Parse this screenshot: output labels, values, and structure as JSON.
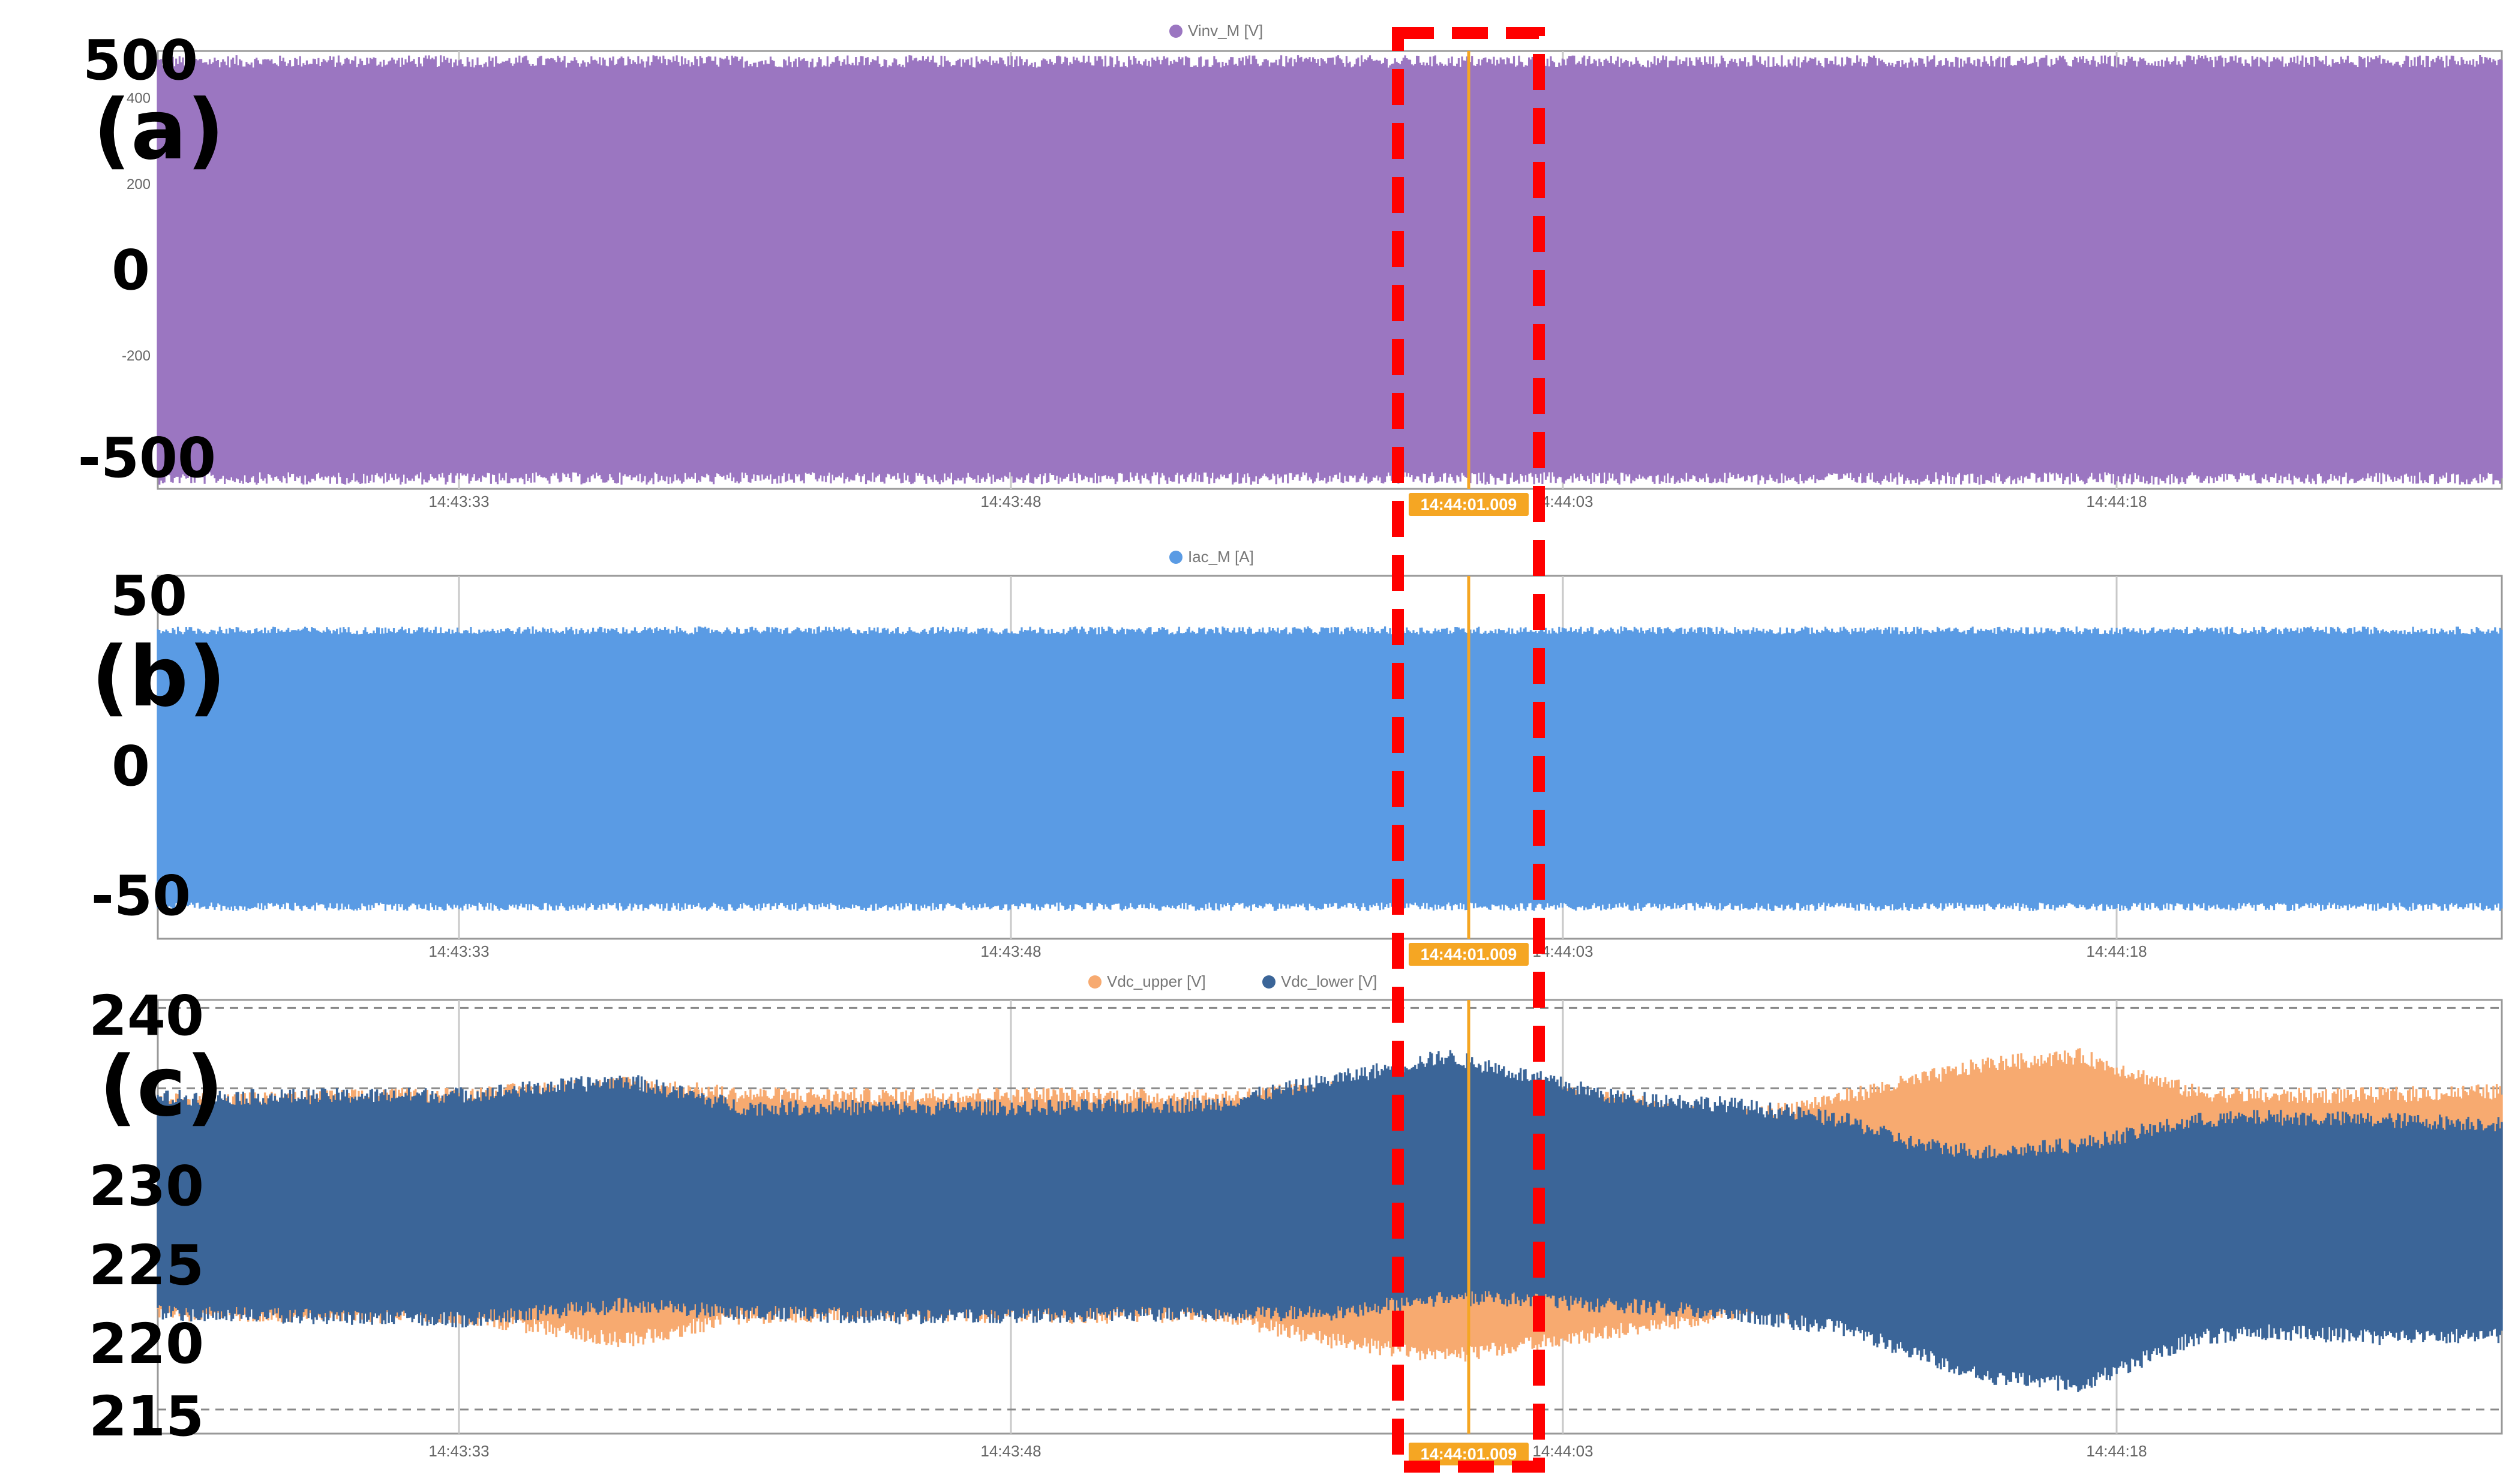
{
  "chart_data": [
    {
      "id": "a",
      "type": "area",
      "panel_label": "(a)",
      "legend": [
        {
          "name": "Vinv_M [V]",
          "color": "#9b76c1"
        }
      ],
      "yticks_small": [
        "400",
        "200",
        "-200"
      ],
      "yticks_big": [
        "500",
        "0",
        "-500"
      ],
      "xticks": [
        "14:43:33",
        "14:43:48",
        "14:44:03",
        "14:44:18"
      ],
      "cursor_label": "14:44:01.009",
      "cursor_color": "#f5a623",
      "series_color": "#9b76c1",
      "envelope_max": 480,
      "envelope_min": -480,
      "ylim": [
        -510,
        510
      ]
    },
    {
      "id": "b",
      "type": "area",
      "panel_label": "(b)",
      "legend": [
        {
          "name": "Iac_M [A]",
          "color": "#5a9be4"
        }
      ],
      "yticks_big": [
        "50",
        "0",
        "-50"
      ],
      "xticks": [
        "14:43:33",
        "14:43:48",
        "14:44:03",
        "14:44:18"
      ],
      "cursor_label": "14:44:01.009",
      "cursor_color": "#f5a623",
      "series_color": "#5a9be4",
      "envelope_max": 35,
      "envelope_min": -38,
      "ylim": [
        -47,
        50
      ]
    },
    {
      "id": "c",
      "type": "area",
      "panel_label": "(c)",
      "legend": [
        {
          "name": "Vdc_upper [V]",
          "color": "#f7aa70"
        },
        {
          "name": "Vdc_lower [V]",
          "color": "#3b6598"
        }
      ],
      "yticks_big": [
        "240",
        "230",
        "225",
        "220",
        "215"
      ],
      "xticks": [
        "14:43:33",
        "14:43:48",
        "14:44:03",
        "14:44:18"
      ],
      "cursor_label": "14:44:01.009",
      "cursor_color": "#f5a623",
      "ylim": [
        213.5,
        240.5
      ],
      "upper_envelope": {
        "x": [
          0,
          0.13,
          0.2,
          0.25,
          0.31,
          0.38,
          0.45,
          0.5,
          0.55,
          0.62,
          0.67,
          0.72,
          0.75,
          0.78,
          0.82,
          0.87,
          0.9,
          0.95,
          1.0
        ],
        "hi": [
          234.2,
          234.6,
          235.3,
          234.6,
          234.5,
          234.6,
          234.4,
          235.0,
          234.8,
          234.5,
          233.0,
          234.5,
          235.5,
          236.5,
          237.0,
          234.7,
          234.5,
          234.6,
          234.8
        ],
        "lo": [
          221.0,
          220.8,
          219.3,
          220.8,
          221.0,
          220.8,
          220.9,
          219.3,
          218.3,
          219.8,
          221.0,
          221.2,
          221.0,
          221.2,
          221.2,
          221.0,
          221.2,
          221.0,
          221.2
        ]
      },
      "lower_envelope": {
        "x": [
          0,
          0.13,
          0.2,
          0.25,
          0.31,
          0.38,
          0.45,
          0.5,
          0.55,
          0.62,
          0.67,
          0.72,
          0.75,
          0.78,
          0.82,
          0.87,
          0.9,
          0.95,
          1.0
        ],
        "hi": [
          234.4,
          234.6,
          235.5,
          233.8,
          233.8,
          233.8,
          234.0,
          235.5,
          237.0,
          234.5,
          234.0,
          233.0,
          231.5,
          231.0,
          231.5,
          233.0,
          233.2,
          233.0,
          232.8
        ],
        "lo": [
          221.0,
          220.6,
          221.5,
          221.0,
          220.8,
          220.8,
          221.0,
          221.0,
          222.0,
          221.5,
          221.0,
          220.0,
          218.5,
          217.0,
          216.5,
          219.5,
          219.8,
          219.5,
          219.6
        ]
      },
      "dashed_grid": [
        240,
        235,
        215
      ]
    }
  ]
}
